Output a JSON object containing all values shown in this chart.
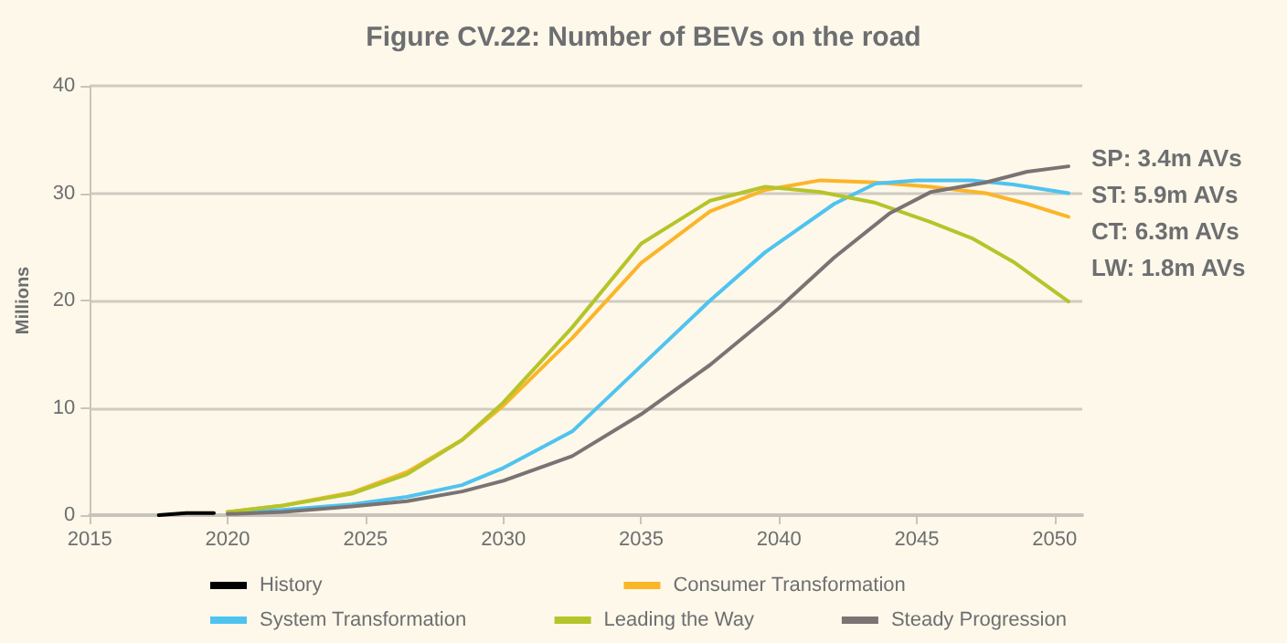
{
  "chart_data": {
    "type": "line",
    "title": "Figure CV.22: Number of BEVs on the road",
    "ylabel": "Millions",
    "xlim": [
      2015,
      2051
    ],
    "xticks": [
      2015,
      2020,
      2025,
      2030,
      2035,
      2040,
      2045,
      2050
    ],
    "ylim": [
      0,
      40
    ],
    "yticks": [
      0,
      10,
      20,
      30,
      40
    ],
    "grid": "y",
    "legend": "bottom",
    "marker": "none",
    "line_style": "solid",
    "series": [
      {
        "name": "History",
        "color": "#000000",
        "x": [
          2017.5,
          2018.5,
          2019.5
        ],
        "values": [
          0,
          0.2,
          0.2
        ]
      },
      {
        "name": "Consumer Transformation",
        "color": "#fbb529",
        "x": [
          2020,
          2022,
          2024.5,
          2026.5,
          2028.5,
          2030,
          2032.5,
          2035,
          2037.5,
          2039.5,
          2041.5,
          2043.5,
          2045.5,
          2047.5,
          2049,
          2050.5
        ],
        "values": [
          0.3,
          0.9,
          2.1,
          4,
          7,
          10.2,
          16.5,
          23.5,
          28.3,
          30.3,
          31.2,
          31,
          30.6,
          30,
          29,
          27.8
        ]
      },
      {
        "name": "System Transformation",
        "color": "#4fc3f0",
        "x": [
          2020,
          2022,
          2024.5,
          2026.5,
          2028.5,
          2030,
          2032.5,
          2035,
          2037.5,
          2039.5,
          2042,
          2043.5,
          2045,
          2047,
          2048.5,
          2050.5
        ],
        "values": [
          0.2,
          0.5,
          1,
          1.7,
          2.8,
          4.4,
          7.8,
          13.9,
          20,
          24.5,
          29,
          30.9,
          31.2,
          31.2,
          30.8,
          30
        ]
      },
      {
        "name": "Leading the Way",
        "color": "#b5c42a",
        "x": [
          2020,
          2022,
          2024.5,
          2026.5,
          2028.5,
          2030,
          2032.5,
          2035,
          2037.5,
          2039.5,
          2041.5,
          2043.5,
          2045.5,
          2047,
          2048.5,
          2050.5
        ],
        "values": [
          0.3,
          0.9,
          2,
          3.8,
          7,
          10.5,
          17.5,
          25.3,
          29.3,
          30.6,
          30.1,
          29.1,
          27.3,
          25.8,
          23.6,
          19.9
        ]
      },
      {
        "name": "Steady Progression",
        "color": "#7a7374",
        "x": [
          2020,
          2022,
          2024.5,
          2026.5,
          2028.5,
          2030,
          2032.5,
          2035,
          2037.5,
          2040,
          2042,
          2044,
          2045.5,
          2047.5,
          2049,
          2050.5
        ],
        "values": [
          0.1,
          0.3,
          0.8,
          1.3,
          2.2,
          3.2,
          5.5,
          9.4,
          14,
          19.3,
          24,
          28.1,
          30.1,
          31,
          32,
          32.5
        ]
      }
    ],
    "annotations": [
      "SP: 3.4m AVs",
      "ST: 5.9m AVs",
      "CT: 6.3m AVs",
      "LW: 1.8m AVs"
    ]
  }
}
